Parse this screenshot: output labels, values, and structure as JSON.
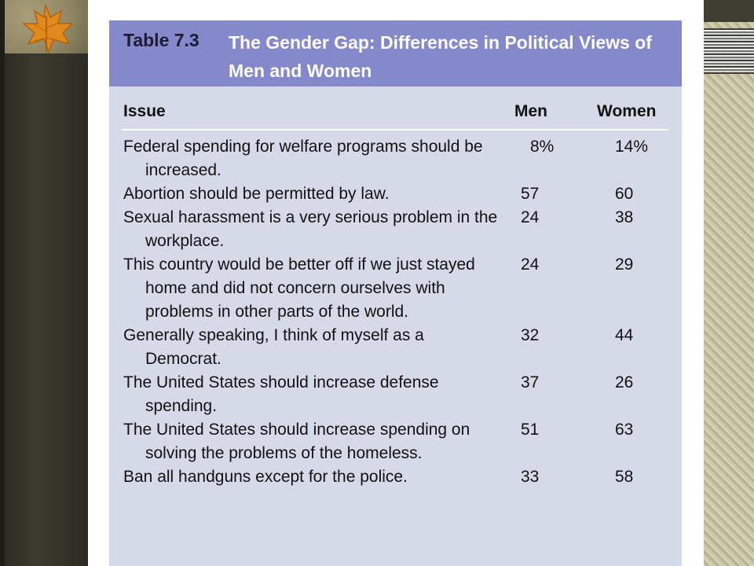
{
  "table": {
    "number": "Table 7.3",
    "title": "The Gender Gap: Differences in Political Views of Men and Women",
    "columns": {
      "issue": "Issue",
      "men": "Men",
      "women": "Women"
    },
    "rows": [
      {
        "issue": "Federal spending for welfare programs should be increased.",
        "men": "8%",
        "women": "14%"
      },
      {
        "issue": "Abortion should be permitted by law.",
        "men": "57",
        "women": "60"
      },
      {
        "issue": "Sexual harassment is a very serious problem in the workplace.",
        "men": "24",
        "women": "38"
      },
      {
        "issue": "This country would be better off if we just stayed home and did not concern ourselves with problems in other parts of the world.",
        "men": "24",
        "women": "29"
      },
      {
        "issue": "Generally speaking, I think of myself as a Democrat.",
        "men": "32",
        "women": "44"
      },
      {
        "issue": "The United States should increase defense spending.",
        "men": "37",
        "women": "26"
      },
      {
        "issue": "The United States should increase spending on solving the problems of the homeless.",
        "men": "51",
        "women": "63"
      },
      {
        "issue": "Ban all handguns except for the police.",
        "men": "33",
        "women": "58"
      }
    ]
  },
  "decor": {
    "left_panel_image": "maple-leaf-icon",
    "right_panel_image": "photo-thumbnail",
    "title_bar_color": "#8589c9",
    "table_body_color": "#d6d9e8"
  }
}
